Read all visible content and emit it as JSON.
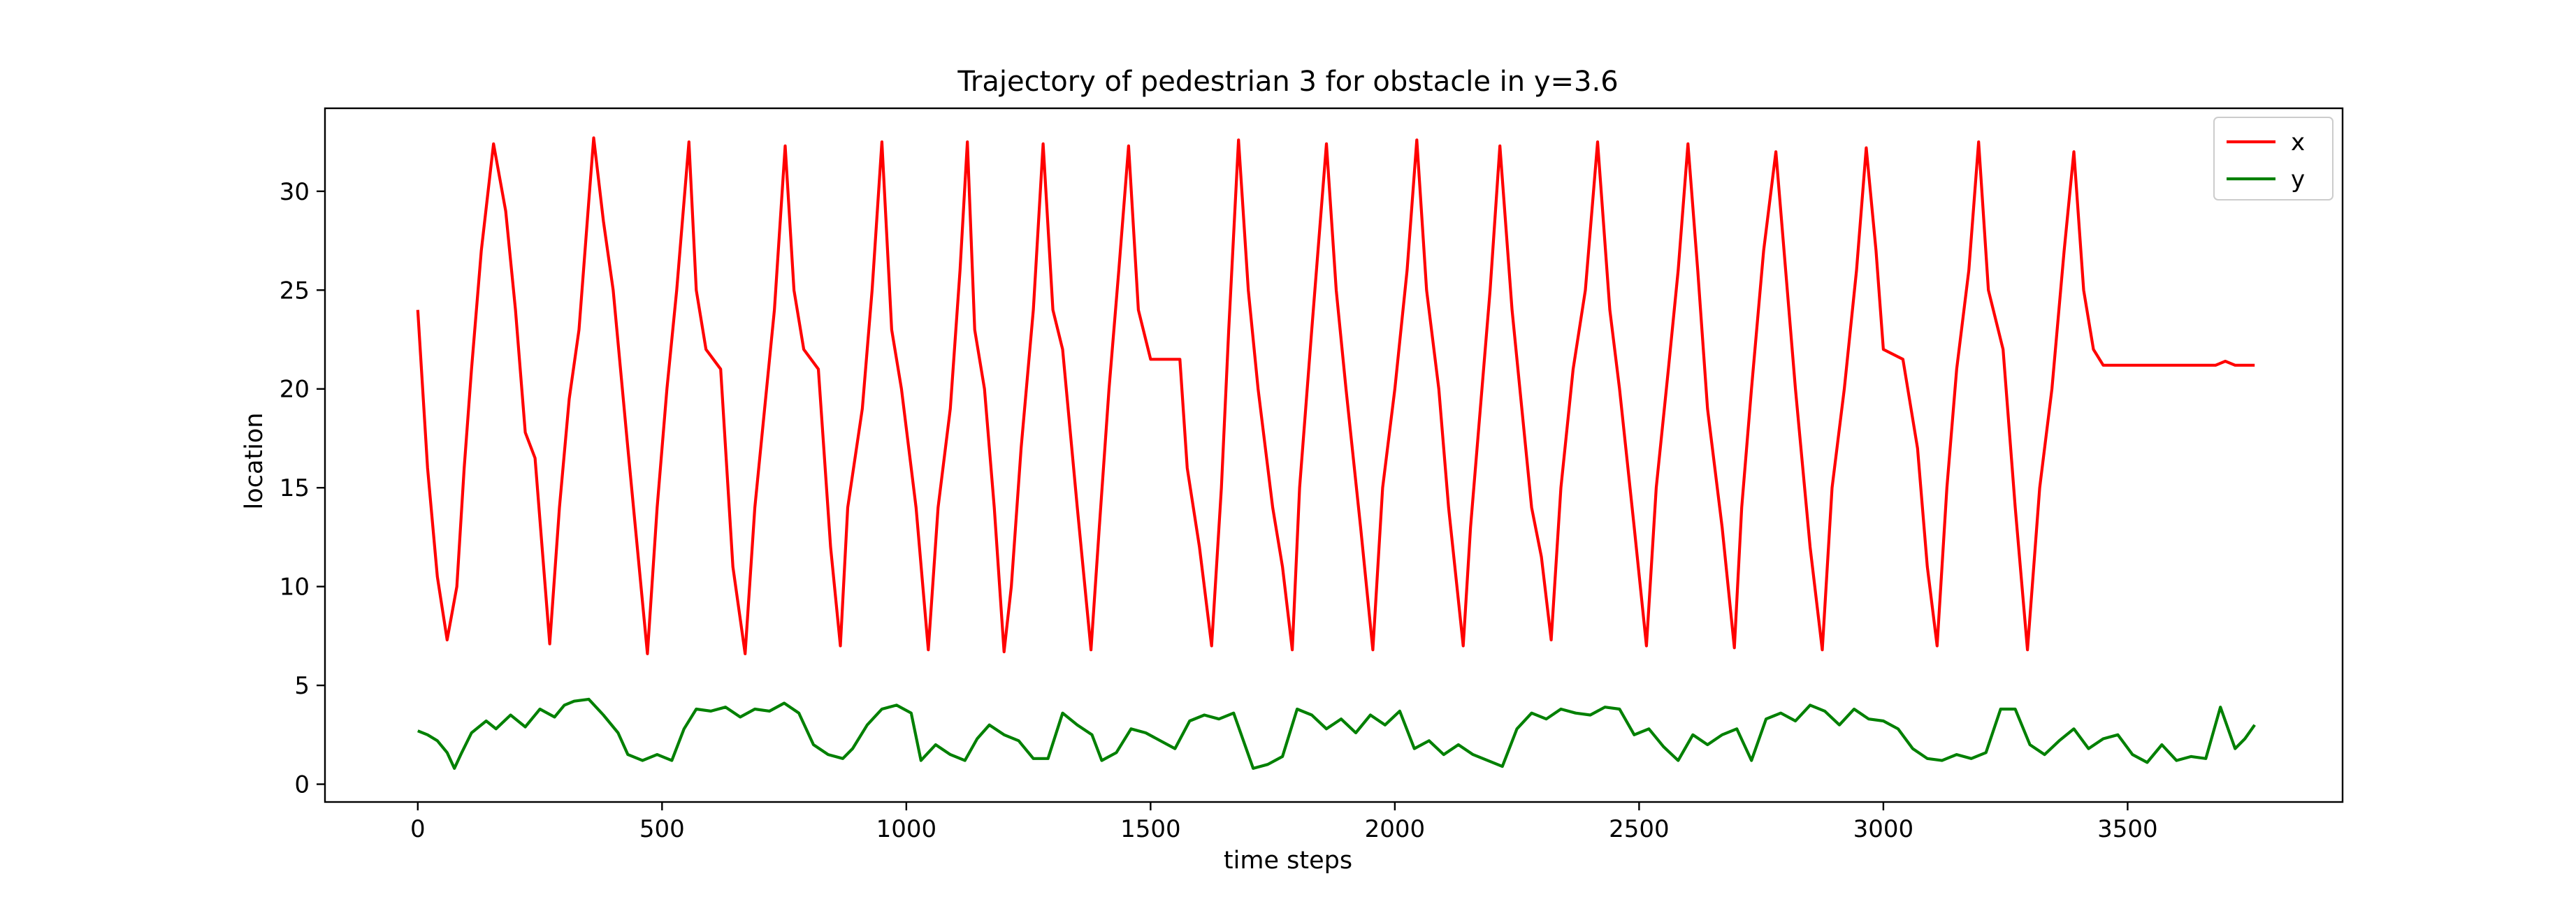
{
  "chart_data": {
    "type": "line",
    "title": "Trajectory of pedestrian 3 for obstacle in y=3.6",
    "xlabel": "time steps",
    "ylabel": "location",
    "xlim": [
      -190,
      3940
    ],
    "ylim": [
      -0.9,
      34.2
    ],
    "xticks": [
      0,
      500,
      1000,
      1500,
      2000,
      2500,
      3000,
      3500
    ],
    "yticks": [
      0,
      5,
      10,
      15,
      20,
      25,
      30
    ],
    "grid": false,
    "legend_position": "top-right",
    "series": [
      {
        "name": "x",
        "color": "#ff0000",
        "points": [
          [
            0,
            24.0
          ],
          [
            20,
            16.0
          ],
          [
            40,
            10.5
          ],
          [
            60,
            7.3
          ],
          [
            80,
            10.0
          ],
          [
            95,
            16.0
          ],
          [
            110,
            21.0
          ],
          [
            130,
            27.0
          ],
          [
            155,
            32.4
          ],
          [
            180,
            29.0
          ],
          [
            200,
            24.0
          ],
          [
            220,
            17.8
          ],
          [
            240,
            16.5
          ],
          [
            270,
            7.1
          ],
          [
            290,
            14.0
          ],
          [
            310,
            19.5
          ],
          [
            330,
            23.0
          ],
          [
            350,
            29.5
          ],
          [
            360,
            32.7
          ],
          [
            380,
            28.5
          ],
          [
            400,
            25.0
          ],
          [
            430,
            17.0
          ],
          [
            470,
            6.6
          ],
          [
            490,
            14.0
          ],
          [
            510,
            20.0
          ],
          [
            530,
            25.0
          ],
          [
            555,
            32.5
          ],
          [
            570,
            25.0
          ],
          [
            590,
            22.0
          ],
          [
            620,
            21.0
          ],
          [
            645,
            11.0
          ],
          [
            670,
            6.6
          ],
          [
            690,
            14.0
          ],
          [
            710,
            19.0
          ],
          [
            730,
            24.0
          ],
          [
            752,
            32.3
          ],
          [
            770,
            25.0
          ],
          [
            790,
            22.0
          ],
          [
            820,
            21.0
          ],
          [
            845,
            12.0
          ],
          [
            865,
            7.0
          ],
          [
            880,
            14.0
          ],
          [
            910,
            19.0
          ],
          [
            930,
            25.0
          ],
          [
            950,
            32.5
          ],
          [
            970,
            23.0
          ],
          [
            990,
            20.0
          ],
          [
            1020,
            14.0
          ],
          [
            1045,
            6.8
          ],
          [
            1065,
            14.0
          ],
          [
            1090,
            19.0
          ],
          [
            1110,
            26.0
          ],
          [
            1125,
            32.5
          ],
          [
            1140,
            23.0
          ],
          [
            1160,
            20.0
          ],
          [
            1180,
            14.0
          ],
          [
            1200,
            6.7
          ],
          [
            1215,
            10.0
          ],
          [
            1235,
            17.0
          ],
          [
            1260,
            24.0
          ],
          [
            1280,
            32.4
          ],
          [
            1300,
            24.0
          ],
          [
            1320,
            22.0
          ],
          [
            1350,
            14.0
          ],
          [
            1378,
            6.8
          ],
          [
            1395,
            13.0
          ],
          [
            1415,
            20.0
          ],
          [
            1435,
            26.0
          ],
          [
            1455,
            32.3
          ],
          [
            1475,
            24.0
          ],
          [
            1500,
            21.5
          ],
          [
            1540,
            21.5
          ],
          [
            1560,
            21.5
          ],
          [
            1575,
            16.0
          ],
          [
            1600,
            12.0
          ],
          [
            1625,
            7.0
          ],
          [
            1645,
            15.0
          ],
          [
            1660,
            23.0
          ],
          [
            1680,
            32.6
          ],
          [
            1700,
            25.0
          ],
          [
            1720,
            20.0
          ],
          [
            1750,
            14.0
          ],
          [
            1770,
            11.0
          ],
          [
            1790,
            6.8
          ],
          [
            1805,
            15.0
          ],
          [
            1830,
            23.0
          ],
          [
            1860,
            32.4
          ],
          [
            1880,
            25.0
          ],
          [
            1900,
            20.0
          ],
          [
            1930,
            13.0
          ],
          [
            1955,
            6.8
          ],
          [
            1975,
            15.0
          ],
          [
            2000,
            20.0
          ],
          [
            2025,
            26.0
          ],
          [
            2045,
            32.6
          ],
          [
            2065,
            25.0
          ],
          [
            2090,
            20.0
          ],
          [
            2110,
            14.0
          ],
          [
            2140,
            7.0
          ],
          [
            2155,
            13.0
          ],
          [
            2175,
            19.0
          ],
          [
            2195,
            25.0
          ],
          [
            2215,
            32.3
          ],
          [
            2240,
            24.0
          ],
          [
            2260,
            19.0
          ],
          [
            2280,
            14.0
          ],
          [
            2300,
            11.5
          ],
          [
            2320,
            7.3
          ],
          [
            2340,
            15.0
          ],
          [
            2365,
            21.0
          ],
          [
            2390,
            25.0
          ],
          [
            2415,
            32.5
          ],
          [
            2440,
            24.0
          ],
          [
            2460,
            20.0
          ],
          [
            2490,
            13.0
          ],
          [
            2515,
            7.0
          ],
          [
            2535,
            15.0
          ],
          [
            2560,
            21.0
          ],
          [
            2580,
            26.0
          ],
          [
            2600,
            32.4
          ],
          [
            2620,
            26.0
          ],
          [
            2640,
            19.0
          ],
          [
            2670,
            13.0
          ],
          [
            2695,
            6.9
          ],
          [
            2710,
            14.0
          ],
          [
            2730,
            20.0
          ],
          [
            2755,
            27.0
          ],
          [
            2780,
            32.0
          ],
          [
            2800,
            26.0
          ],
          [
            2820,
            20.0
          ],
          [
            2850,
            12.0
          ],
          [
            2875,
            6.8
          ],
          [
            2895,
            15.0
          ],
          [
            2920,
            20.0
          ],
          [
            2945,
            26.0
          ],
          [
            2965,
            32.2
          ],
          [
            2985,
            27.0
          ],
          [
            3000,
            22.0
          ],
          [
            3040,
            21.5
          ],
          [
            3070,
            17.0
          ],
          [
            3090,
            11.0
          ],
          [
            3110,
            7.0
          ],
          [
            3130,
            15.0
          ],
          [
            3150,
            21.0
          ],
          [
            3175,
            26.0
          ],
          [
            3195,
            32.5
          ],
          [
            3215,
            25.0
          ],
          [
            3245,
            22.0
          ],
          [
            3270,
            14.0
          ],
          [
            3295,
            6.8
          ],
          [
            3320,
            15.0
          ],
          [
            3345,
            20.0
          ],
          [
            3370,
            27.0
          ],
          [
            3390,
            32.0
          ],
          [
            3410,
            25.0
          ],
          [
            3430,
            22.0
          ],
          [
            3450,
            21.2
          ],
          [
            3520,
            21.2
          ],
          [
            3560,
            21.2
          ],
          [
            3680,
            21.2
          ],
          [
            3700,
            21.4
          ],
          [
            3720,
            21.2
          ],
          [
            3760,
            21.2
          ]
        ]
      },
      {
        "name": "y",
        "color": "#008000",
        "points": [
          [
            0,
            2.7
          ],
          [
            20,
            2.5
          ],
          [
            40,
            2.2
          ],
          [
            60,
            1.6
          ],
          [
            75,
            0.8
          ],
          [
            90,
            1.6
          ],
          [
            110,
            2.6
          ],
          [
            140,
            3.2
          ],
          [
            160,
            2.8
          ],
          [
            190,
            3.5
          ],
          [
            220,
            2.9
          ],
          [
            250,
            3.8
          ],
          [
            280,
            3.4
          ],
          [
            300,
            4.0
          ],
          [
            320,
            4.2
          ],
          [
            350,
            4.3
          ],
          [
            380,
            3.5
          ],
          [
            410,
            2.6
          ],
          [
            430,
            1.5
          ],
          [
            460,
            1.2
          ],
          [
            490,
            1.5
          ],
          [
            520,
            1.2
          ],
          [
            545,
            2.8
          ],
          [
            570,
            3.8
          ],
          [
            600,
            3.7
          ],
          [
            630,
            3.9
          ],
          [
            660,
            3.4
          ],
          [
            690,
            3.8
          ],
          [
            720,
            3.7
          ],
          [
            750,
            4.1
          ],
          [
            780,
            3.6
          ],
          [
            810,
            2.0
          ],
          [
            840,
            1.5
          ],
          [
            870,
            1.3
          ],
          [
            890,
            1.8
          ],
          [
            920,
            3.0
          ],
          [
            950,
            3.8
          ],
          [
            980,
            4.0
          ],
          [
            1010,
            3.6
          ],
          [
            1030,
            1.2
          ],
          [
            1060,
            2.0
          ],
          [
            1090,
            1.5
          ],
          [
            1120,
            1.2
          ],
          [
            1145,
            2.3
          ],
          [
            1170,
            3.0
          ],
          [
            1200,
            2.5
          ],
          [
            1230,
            2.2
          ],
          [
            1260,
            1.3
          ],
          [
            1290,
            1.3
          ],
          [
            1320,
            3.6
          ],
          [
            1350,
            3.0
          ],
          [
            1380,
            2.5
          ],
          [
            1400,
            1.2
          ],
          [
            1430,
            1.6
          ],
          [
            1460,
            2.8
          ],
          [
            1490,
            2.6
          ],
          [
            1520,
            2.2
          ],
          [
            1550,
            1.8
          ],
          [
            1580,
            3.2
          ],
          [
            1610,
            3.5
          ],
          [
            1640,
            3.3
          ],
          [
            1670,
            3.6
          ],
          [
            1690,
            2.2
          ],
          [
            1710,
            0.8
          ],
          [
            1740,
            1.0
          ],
          [
            1770,
            1.4
          ],
          [
            1800,
            3.8
          ],
          [
            1830,
            3.5
          ],
          [
            1860,
            2.8
          ],
          [
            1890,
            3.3
          ],
          [
            1920,
            2.6
          ],
          [
            1950,
            3.5
          ],
          [
            1980,
            3.0
          ],
          [
            2010,
            3.7
          ],
          [
            2040,
            1.8
          ],
          [
            2070,
            2.2
          ],
          [
            2100,
            1.5
          ],
          [
            2130,
            2.0
          ],
          [
            2160,
            1.5
          ],
          [
            2190,
            1.2
          ],
          [
            2220,
            0.9
          ],
          [
            2250,
            2.8
          ],
          [
            2280,
            3.6
          ],
          [
            2310,
            3.3
          ],
          [
            2340,
            3.8
          ],
          [
            2370,
            3.6
          ],
          [
            2400,
            3.5
          ],
          [
            2430,
            3.9
          ],
          [
            2460,
            3.8
          ],
          [
            2490,
            2.5
          ],
          [
            2520,
            2.8
          ],
          [
            2550,
            1.9
          ],
          [
            2580,
            1.2
          ],
          [
            2610,
            2.5
          ],
          [
            2640,
            2.0
          ],
          [
            2670,
            2.5
          ],
          [
            2700,
            2.8
          ],
          [
            2730,
            1.2
          ],
          [
            2760,
            3.3
          ],
          [
            2790,
            3.6
          ],
          [
            2820,
            3.2
          ],
          [
            2850,
            4.0
          ],
          [
            2880,
            3.7
          ],
          [
            2910,
            3.0
          ],
          [
            2940,
            3.8
          ],
          [
            2970,
            3.3
          ],
          [
            3000,
            3.2
          ],
          [
            3030,
            2.8
          ],
          [
            3060,
            1.8
          ],
          [
            3090,
            1.3
          ],
          [
            3120,
            1.2
          ],
          [
            3150,
            1.5
          ],
          [
            3180,
            1.3
          ],
          [
            3210,
            1.6
          ],
          [
            3240,
            3.8
          ],
          [
            3270,
            3.8
          ],
          [
            3300,
            2.0
          ],
          [
            3330,
            1.5
          ],
          [
            3360,
            2.2
          ],
          [
            3390,
            2.8
          ],
          [
            3420,
            1.8
          ],
          [
            3450,
            2.3
          ],
          [
            3480,
            2.5
          ],
          [
            3510,
            1.5
          ],
          [
            3540,
            1.1
          ],
          [
            3570,
            2.0
          ],
          [
            3600,
            1.2
          ],
          [
            3630,
            1.4
          ],
          [
            3660,
            1.3
          ],
          [
            3690,
            3.9
          ],
          [
            3720,
            1.8
          ],
          [
            3740,
            2.3
          ],
          [
            3760,
            3.0
          ]
        ]
      }
    ]
  }
}
